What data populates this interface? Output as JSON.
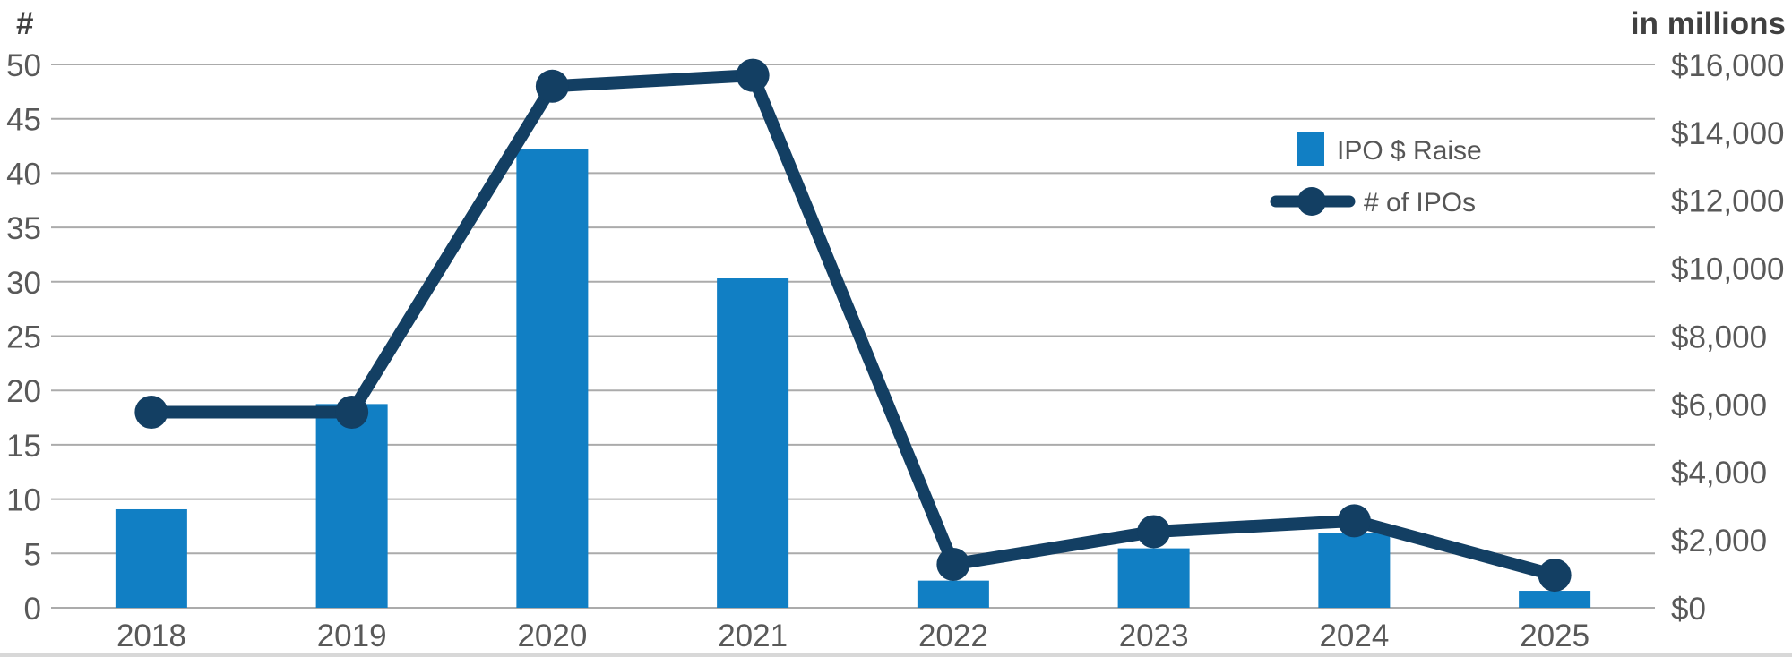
{
  "chart_data": {
    "type": "combo-bar-line",
    "categories": [
      "2018",
      "2019",
      "2020",
      "2021",
      "2022",
      "2023",
      "2024",
      "2025"
    ],
    "series": [
      {
        "name": "IPO $ Raise",
        "type": "bar",
        "axis": "right",
        "values": [
          2900,
          6000,
          13500,
          9700,
          800,
          1750,
          2200,
          500
        ],
        "color": "#117fc4"
      },
      {
        "name": "# of IPOs",
        "type": "line",
        "axis": "left",
        "values": [
          18,
          18,
          48,
          49,
          4,
          7,
          8,
          3
        ],
        "color": "#133f63"
      }
    ],
    "left_axis": {
      "title": "#",
      "min": 0,
      "max": 50,
      "tick_step": 5,
      "tick_labels": [
        "0",
        "5",
        "10",
        "15",
        "20",
        "25",
        "30",
        "35",
        "40",
        "45",
        "50"
      ]
    },
    "right_axis": {
      "title": "in millions",
      "min": 0,
      "max": 16000,
      "tick_step": 2000,
      "tick_labels": [
        "$0",
        "$2,000",
        "$4,000",
        "$6,000",
        "$8,000",
        "$10,000",
        "$12,000",
        "$14,000",
        "$16,000"
      ]
    },
    "legend": [
      "IPO $ Raise",
      "# of IPOs"
    ],
    "grid": true,
    "colors": {
      "gridline": "#ababab",
      "tick_text": "#595959",
      "axis_title_text": "#404040",
      "legend_text": "#565656",
      "bottom_border": "#d8d8d8",
      "background": "#ffffff"
    }
  }
}
